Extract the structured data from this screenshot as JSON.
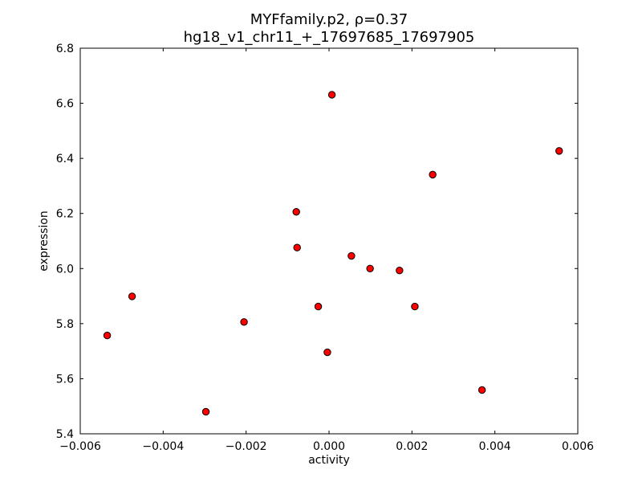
{
  "chart_data": {
    "type": "scatter",
    "title_line1": "MYFfamily.p2, ρ=0.37",
    "title_line2": "hg18_v1_chr11_+_17697685_17697905",
    "xlabel": "activity",
    "ylabel": "expression",
    "xlim": [
      -0.006,
      0.006
    ],
    "ylim": [
      5.4,
      6.8
    ],
    "xticks": [
      -0.006,
      -0.004,
      -0.002,
      0.0,
      0.002,
      0.004,
      0.006
    ],
    "xtick_labels": [
      "−0.006",
      "−0.004",
      "−0.002",
      "0.000",
      "0.002",
      "0.004",
      "0.006"
    ],
    "yticks": [
      5.4,
      5.6,
      5.8,
      6.0,
      6.2,
      6.4,
      6.6,
      6.8
    ],
    "ytick_labels": [
      "5.4",
      "5.6",
      "5.8",
      "6.0",
      "6.2",
      "6.4",
      "6.6",
      "6.8"
    ],
    "grid": false,
    "marker_color": "#ff0000",
    "marker_edge_color": "#000000",
    "points": [
      {
        "x": -0.00535,
        "y": 5.757
      },
      {
        "x": -0.00475,
        "y": 5.899
      },
      {
        "x": -0.00297,
        "y": 5.48
      },
      {
        "x": -0.00205,
        "y": 5.806
      },
      {
        "x": -0.00079,
        "y": 6.206
      },
      {
        "x": -0.00077,
        "y": 6.076
      },
      {
        "x": -0.00026,
        "y": 5.862
      },
      {
        "x": -4e-05,
        "y": 5.696
      },
      {
        "x": 7e-05,
        "y": 6.631
      },
      {
        "x": 0.00054,
        "y": 6.046
      },
      {
        "x": 0.00099,
        "y": 6.0
      },
      {
        "x": 0.0017,
        "y": 5.993
      },
      {
        "x": 0.00207,
        "y": 5.862
      },
      {
        "x": 0.0025,
        "y": 6.341
      },
      {
        "x": 0.00369,
        "y": 5.559
      },
      {
        "x": 0.00555,
        "y": 6.427
      }
    ]
  }
}
